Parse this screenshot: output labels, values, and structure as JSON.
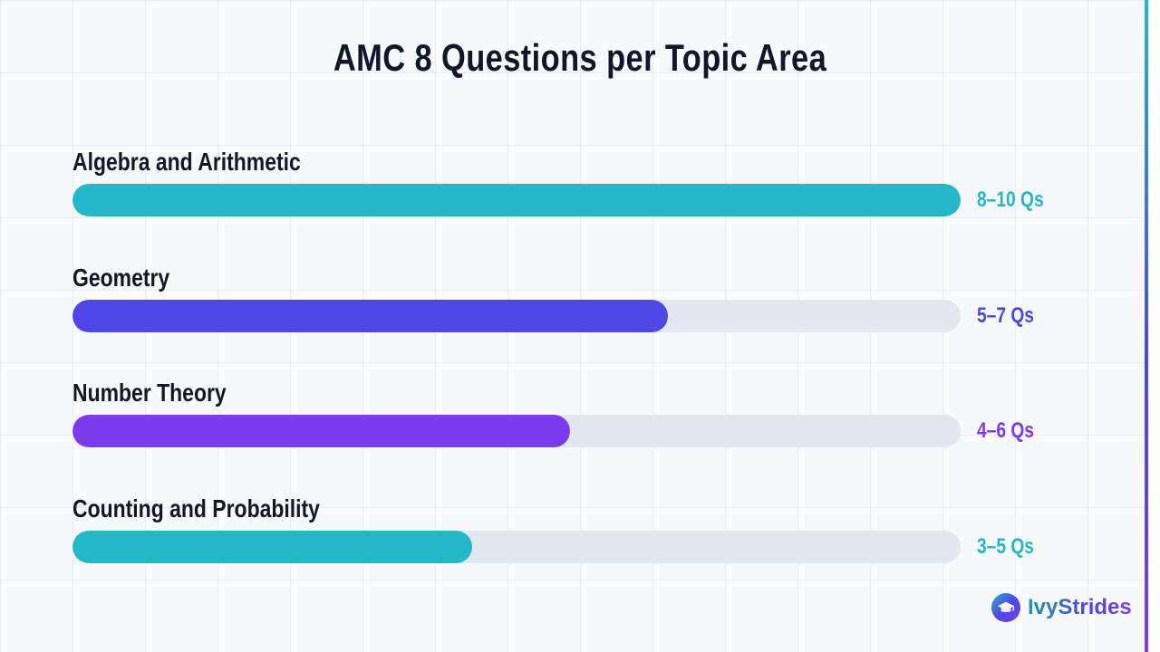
{
  "chart_data": {
    "type": "bar",
    "orientation": "horizontal",
    "title": "AMC 8 Questions per Topic Area",
    "categories": [
      "Algebra and Arithmetic",
      "Geometry",
      "Number Theory",
      "Counting and Probability"
    ],
    "value_labels": [
      "8–10 Qs",
      "5–7 Qs",
      "4–6 Qs",
      "3–5 Qs"
    ],
    "values": [
      10,
      6.7,
      5.6,
      4.5
    ],
    "xlim": [
      0,
      10
    ],
    "colors": [
      "#22b8c8",
      "#4f46e5",
      "#7c3aed",
      "#22b8c8"
    ],
    "track_color": "#e2e8f0",
    "grid": false
  },
  "brand": {
    "name": "IvyStrides",
    "icon": "graduation-cap-icon",
    "accent_colors": [
      "#22b8c8",
      "#4f46e5",
      "#7c3aed"
    ]
  }
}
